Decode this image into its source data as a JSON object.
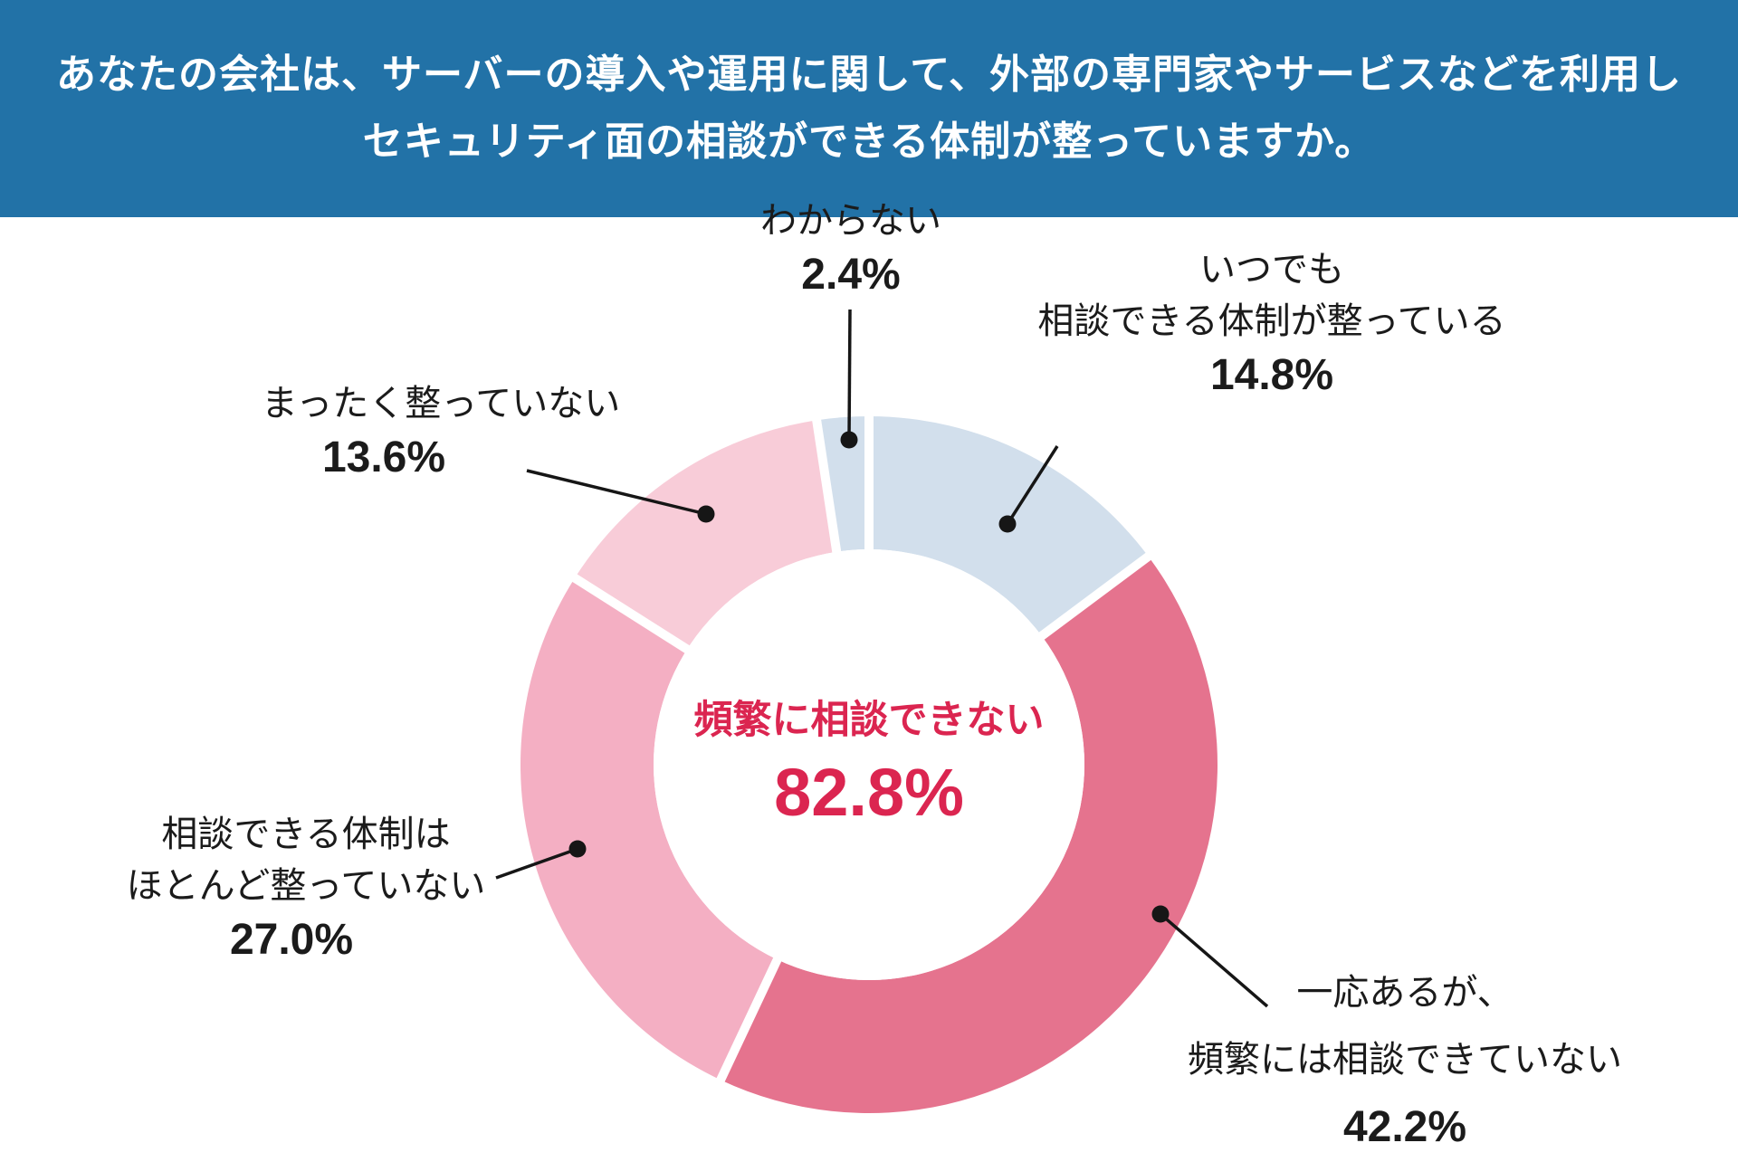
{
  "header": {
    "title_line1": "あなたの会社は、サーバーの導入や運用に関して、外部の専門家やサービスなどを利用し",
    "title_line2": "セキュリティ面の相談ができる体制が整っていますか。",
    "bg_color": "#2272A7",
    "text_color": "#FFFFFF"
  },
  "chart_data": {
    "type": "pie",
    "variant": "donut",
    "direction": "clockwise",
    "start_angle_deg": 0,
    "legend_position": "none (direct callout labels with leader lines)",
    "center_label": "頻繁に相談できない",
    "center_value": "82.8%",
    "center_color": "#DB2550",
    "categories": [
      "いつでも相談できる体制が整っている",
      "一応あるが、頻繁には相談できていない",
      "相談できる体制はほとんど整っていない",
      "まったく整っていない",
      "わからない"
    ],
    "values": [
      14.8,
      42.2,
      27.0,
      13.6,
      2.4
    ],
    "slices": [
      {
        "id": "itsudemo",
        "label": "いつでも相談できる体制が整っている",
        "label_lines": [
          "いつでも",
          "相談できる体制が整っている"
        ],
        "value": 14.8,
        "pct_text": "14.8%",
        "color": "#D2DFEC"
      },
      {
        "id": "ichiou",
        "label": "一応あるが、頻繁には相談できていない",
        "label_lines": [
          "一応あるが、",
          "頻繁には相談できていない"
        ],
        "value": 42.2,
        "pct_text": "42.2%",
        "color": "#E5738E"
      },
      {
        "id": "hotondo",
        "label": "相談できる体制はほとんど整っていない",
        "label_lines": [
          "相談できる体制は",
          "ほとんど整っていない"
        ],
        "value": 27.0,
        "pct_text": "27.0%",
        "color": "#F4AFC3"
      },
      {
        "id": "mattaku",
        "label": "まったく整っていない",
        "label_lines": [
          "まったく整っていない"
        ],
        "value": 13.6,
        "pct_text": "13.6%",
        "color": "#F8CCD8"
      },
      {
        "id": "wakaranai",
        "label": "わからない",
        "label_lines": [
          "わからない"
        ],
        "value": 2.4,
        "pct_text": "2.4%",
        "color": "#D2DFEC"
      }
    ]
  }
}
